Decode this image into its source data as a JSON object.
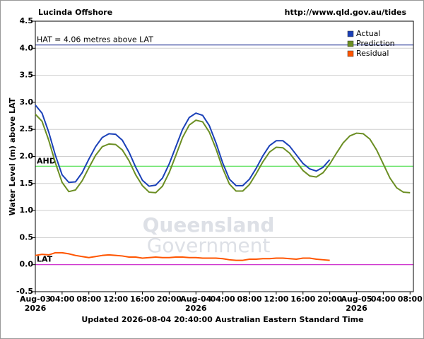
{
  "chart_data": {
    "type": "line",
    "title": "Lucinda Offshore",
    "source": "http://www.qld.gov.au/tides",
    "y_label": "Water Level (m) above LAT",
    "footer": "Updated 2026-08-04 20:40:00 Australian Eastern Standard Time",
    "watermark": [
      "Queensland",
      "Government"
    ],
    "xlim": [
      0,
      56.5
    ],
    "ylim": [
      -0.5,
      4.5
    ],
    "yticks": [
      -0.5,
      {
        "value": 0,
        "label": "0.0"
      },
      0.5,
      {
        "value": 1,
        "label": "1.0"
      },
      1.5,
      {
        "value": 2,
        "label": "2.0"
      },
      2.5,
      {
        "value": 3,
        "label": "3.0"
      },
      3.5,
      {
        "value": 4,
        "label": "4.0"
      },
      4.5
    ],
    "xticks": [
      {
        "value": 0,
        "label": "Aug-03\n2026"
      },
      {
        "value": 4,
        "label": "04:00"
      },
      {
        "value": 8,
        "label": "08:00"
      },
      {
        "value": 12,
        "label": "12:00"
      },
      {
        "value": 16,
        "label": "16:00"
      },
      {
        "value": 20,
        "label": "20:00"
      },
      {
        "value": 24,
        "label": "Aug-04\n2026"
      },
      {
        "value": 28,
        "label": "04:00"
      },
      {
        "value": 32,
        "label": "08:00"
      },
      {
        "value": 36,
        "label": "12:00"
      },
      {
        "value": 40,
        "label": "16:00"
      },
      {
        "value": 44,
        "label": "20:00"
      },
      {
        "value": 48,
        "label": "Aug-05\n2026"
      },
      {
        "value": 52,
        "label": "04:00"
      },
      {
        "value": 56,
        "label": "08:00"
      }
    ],
    "grid": true,
    "legend": "top-right",
    "reference_lines": [
      {
        "label": "HAT = 4.06 metres above LAT",
        "value": 4.06,
        "color": "#2a3a9a"
      },
      {
        "label": "AHD",
        "value": 1.82,
        "color": "#44dd44"
      },
      {
        "label": "LAT",
        "value": 0,
        "color": "#cc22cc"
      }
    ],
    "series": [
      {
        "name": "Actual",
        "color": "#1a40b8",
        "x": [
          0,
          1,
          2,
          3,
          4,
          5,
          6,
          7,
          8,
          9,
          10,
          11,
          12,
          13,
          14,
          15,
          16,
          17,
          18,
          19,
          20,
          21,
          22,
          23,
          24,
          25,
          26,
          27,
          28,
          29,
          30,
          31,
          32,
          33,
          34,
          35,
          36,
          37,
          38,
          39,
          40,
          41,
          42,
          43,
          44
        ],
        "values": [
          2.95,
          2.8,
          2.45,
          2.02,
          1.66,
          1.52,
          1.53,
          1.7,
          1.95,
          2.18,
          2.35,
          2.42,
          2.41,
          2.3,
          2.08,
          1.8,
          1.56,
          1.45,
          1.47,
          1.6,
          1.86,
          2.18,
          2.5,
          2.72,
          2.8,
          2.76,
          2.57,
          2.25,
          1.88,
          1.58,
          1.46,
          1.46,
          1.58,
          1.78,
          2.01,
          2.2,
          2.29,
          2.29,
          2.19,
          2.03,
          1.87,
          1.77,
          1.73,
          1.8,
          1.94
        ]
      },
      {
        "name": "Prediction",
        "color": "#6b8e23",
        "x": [
          0,
          1,
          2,
          3,
          4,
          5,
          6,
          7,
          8,
          9,
          10,
          11,
          12,
          13,
          14,
          15,
          16,
          17,
          18,
          19,
          20,
          21,
          22,
          23,
          24,
          25,
          26,
          27,
          28,
          29,
          30,
          31,
          32,
          33,
          34,
          35,
          36,
          37,
          38,
          39,
          40,
          41,
          42,
          43,
          44,
          45,
          46,
          47,
          48,
          49,
          50,
          51,
          52,
          53,
          54,
          55,
          56
        ],
        "values": [
          2.78,
          2.65,
          2.3,
          1.88,
          1.52,
          1.35,
          1.38,
          1.55,
          1.79,
          2.02,
          2.18,
          2.23,
          2.22,
          2.12,
          1.92,
          1.66,
          1.46,
          1.34,
          1.33,
          1.45,
          1.7,
          2.02,
          2.35,
          2.58,
          2.67,
          2.64,
          2.45,
          2.14,
          1.78,
          1.49,
          1.36,
          1.36,
          1.48,
          1.68,
          1.9,
          2.08,
          2.17,
          2.16,
          2.06,
          1.9,
          1.74,
          1.64,
          1.62,
          1.7,
          1.86,
          2.06,
          2.25,
          2.38,
          2.43,
          2.42,
          2.32,
          2.12,
          1.86,
          1.6,
          1.42,
          1.34,
          1.33
        ]
      },
      {
        "name": "Residual",
        "color": "#ff5500",
        "x": [
          0,
          1,
          2,
          3,
          4,
          5,
          6,
          7,
          8,
          9,
          10,
          11,
          12,
          13,
          14,
          15,
          16,
          17,
          18,
          19,
          20,
          21,
          22,
          23,
          24,
          25,
          26,
          27,
          28,
          29,
          30,
          31,
          32,
          33,
          34,
          35,
          36,
          37,
          38,
          39,
          40,
          41,
          42,
          43,
          44
        ],
        "values": [
          0.17,
          0.19,
          0.18,
          0.22,
          0.22,
          0.2,
          0.17,
          0.15,
          0.13,
          0.15,
          0.17,
          0.18,
          0.17,
          0.16,
          0.14,
          0.14,
          0.12,
          0.13,
          0.14,
          0.13,
          0.13,
          0.14,
          0.14,
          0.13,
          0.13,
          0.12,
          0.12,
          0.12,
          0.11,
          0.09,
          0.08,
          0.08,
          0.1,
          0.1,
          0.11,
          0.11,
          0.12,
          0.12,
          0.11,
          0.1,
          0.12,
          0.12,
          0.1,
          0.09,
          0.08
        ]
      }
    ]
  }
}
